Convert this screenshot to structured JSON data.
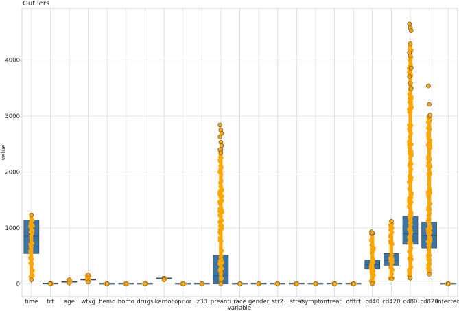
{
  "chart_data": {
    "type": "box",
    "title": "Outliers",
    "xlabel": "variable",
    "ylabel": "value",
    "ylim": [
      -230,
      4930
    ],
    "yticks": [
      0,
      1000,
      2000,
      3000,
      4000
    ],
    "grid": true,
    "colors": {
      "box": "#3a75a6",
      "points": "#ffa500",
      "point_edge": "#555555",
      "grid": "#d9d9d9",
      "median": "#2a4f70"
    },
    "categories": [
      "time",
      "trt",
      "age",
      "wtkg",
      "hemo",
      "homo",
      "drugs",
      "karnof",
      "oprior",
      "z30",
      "preanti",
      "race",
      "gender",
      "str2",
      "strat",
      "symptom",
      "treat",
      "offtrt",
      "cd40",
      "cd420",
      "cd80",
      "cd820",
      "infected"
    ],
    "boxes": [
      {
        "q1": 540,
        "median": 850,
        "q3": 1140,
        "wmin": 14,
        "wmax": 1231,
        "pts_lo": 70,
        "pts_hi": 1231
      },
      {
        "q1": 1,
        "median": 2,
        "q3": 3,
        "wmin": 0,
        "wmax": 3,
        "pts_lo": 0,
        "pts_hi": 3
      },
      {
        "q1": 29,
        "median": 34,
        "q3": 40,
        "wmin": 12,
        "wmax": 70,
        "pts_lo": 12,
        "pts_hi": 70
      },
      {
        "q1": 66,
        "median": 74,
        "q3": 82,
        "wmin": 31,
        "wmax": 159,
        "pts_lo": 31,
        "pts_hi": 159
      },
      {
        "q1": 0,
        "median": 0,
        "q3": 0,
        "wmin": 0,
        "wmax": 1,
        "pts_lo": 0,
        "pts_hi": 1
      },
      {
        "q1": 0,
        "median": 1,
        "q3": 1,
        "wmin": 0,
        "wmax": 1,
        "pts_lo": 0,
        "pts_hi": 1
      },
      {
        "q1": 0,
        "median": 0,
        "q3": 0,
        "wmin": 0,
        "wmax": 1,
        "pts_lo": 0,
        "pts_hi": 1
      },
      {
        "q1": 90,
        "median": 100,
        "q3": 100,
        "wmin": 70,
        "wmax": 100,
        "pts_lo": 70,
        "pts_hi": 100
      },
      {
        "q1": 0,
        "median": 0,
        "q3": 0,
        "wmin": 0,
        "wmax": 1,
        "pts_lo": 0,
        "pts_hi": 1
      },
      {
        "q1": 0,
        "median": 1,
        "q3": 1,
        "wmin": 0,
        "wmax": 1,
        "pts_lo": 0,
        "pts_hi": 1
      },
      {
        "q1": 0,
        "median": 142,
        "q3": 510,
        "wmin": 0,
        "wmax": 1270,
        "pts_lo": 0,
        "pts_hi": 2400
      },
      {
        "q1": 0,
        "median": 0,
        "q3": 0,
        "wmin": 0,
        "wmax": 1,
        "pts_lo": 0,
        "pts_hi": 1
      },
      {
        "q1": 1,
        "median": 1,
        "q3": 1,
        "wmin": 0,
        "wmax": 1,
        "pts_lo": 0,
        "pts_hi": 1
      },
      {
        "q1": 0,
        "median": 1,
        "q3": 1,
        "wmin": 0,
        "wmax": 1,
        "pts_lo": 0,
        "pts_hi": 1
      },
      {
        "q1": 0,
        "median": 1,
        "q3": 2,
        "wmin": 0,
        "wmax": 2,
        "pts_lo": 0,
        "pts_hi": 2
      },
      {
        "q1": 0,
        "median": 0,
        "q3": 0,
        "wmin": 0,
        "wmax": 1,
        "pts_lo": 0,
        "pts_hi": 1
      },
      {
        "q1": 1,
        "median": 1,
        "q3": 1,
        "wmin": 0,
        "wmax": 1,
        "pts_lo": 0,
        "pts_hi": 1
      },
      {
        "q1": 0,
        "median": 0,
        "q3": 1,
        "wmin": 0,
        "wmax": 1,
        "pts_lo": 0,
        "pts_hi": 1
      },
      {
        "q1": 263,
        "median": 340,
        "q3": 423,
        "wmin": 0,
        "wmax": 661,
        "pts_lo": 0,
        "pts_hi": 900
      },
      {
        "q1": 330,
        "median": 420,
        "q3": 540,
        "wmin": 49,
        "wmax": 840,
        "pts_lo": 80,
        "pts_hi": 1119
      },
      {
        "q1": 705,
        "median": 892,
        "q3": 1210,
        "wmin": 40,
        "wmax": 2060,
        "pts_lo": 100,
        "pts_hi": 4300
      },
      {
        "q1": 640,
        "median": 860,
        "q3": 1100,
        "wmin": 124,
        "wmax": 1740,
        "pts_lo": 170,
        "pts_hi": 3000
      },
      {
        "q1": 0,
        "median": 0,
        "q3": 0,
        "wmin": 0,
        "wmax": 1,
        "pts_lo": 0,
        "pts_hi": 1
      }
    ],
    "outliers": {
      "preanti": [
        2840,
        2750,
        2690,
        2630,
        2530,
        2470,
        2400,
        2340
      ],
      "cd40": [
        930,
        910
      ],
      "cd80": [
        4650,
        4580,
        4530,
        4130,
        4080,
        3860,
        3710,
        3580,
        3490
      ],
      "cd820": [
        3540,
        3210,
        3020
      ]
    }
  }
}
